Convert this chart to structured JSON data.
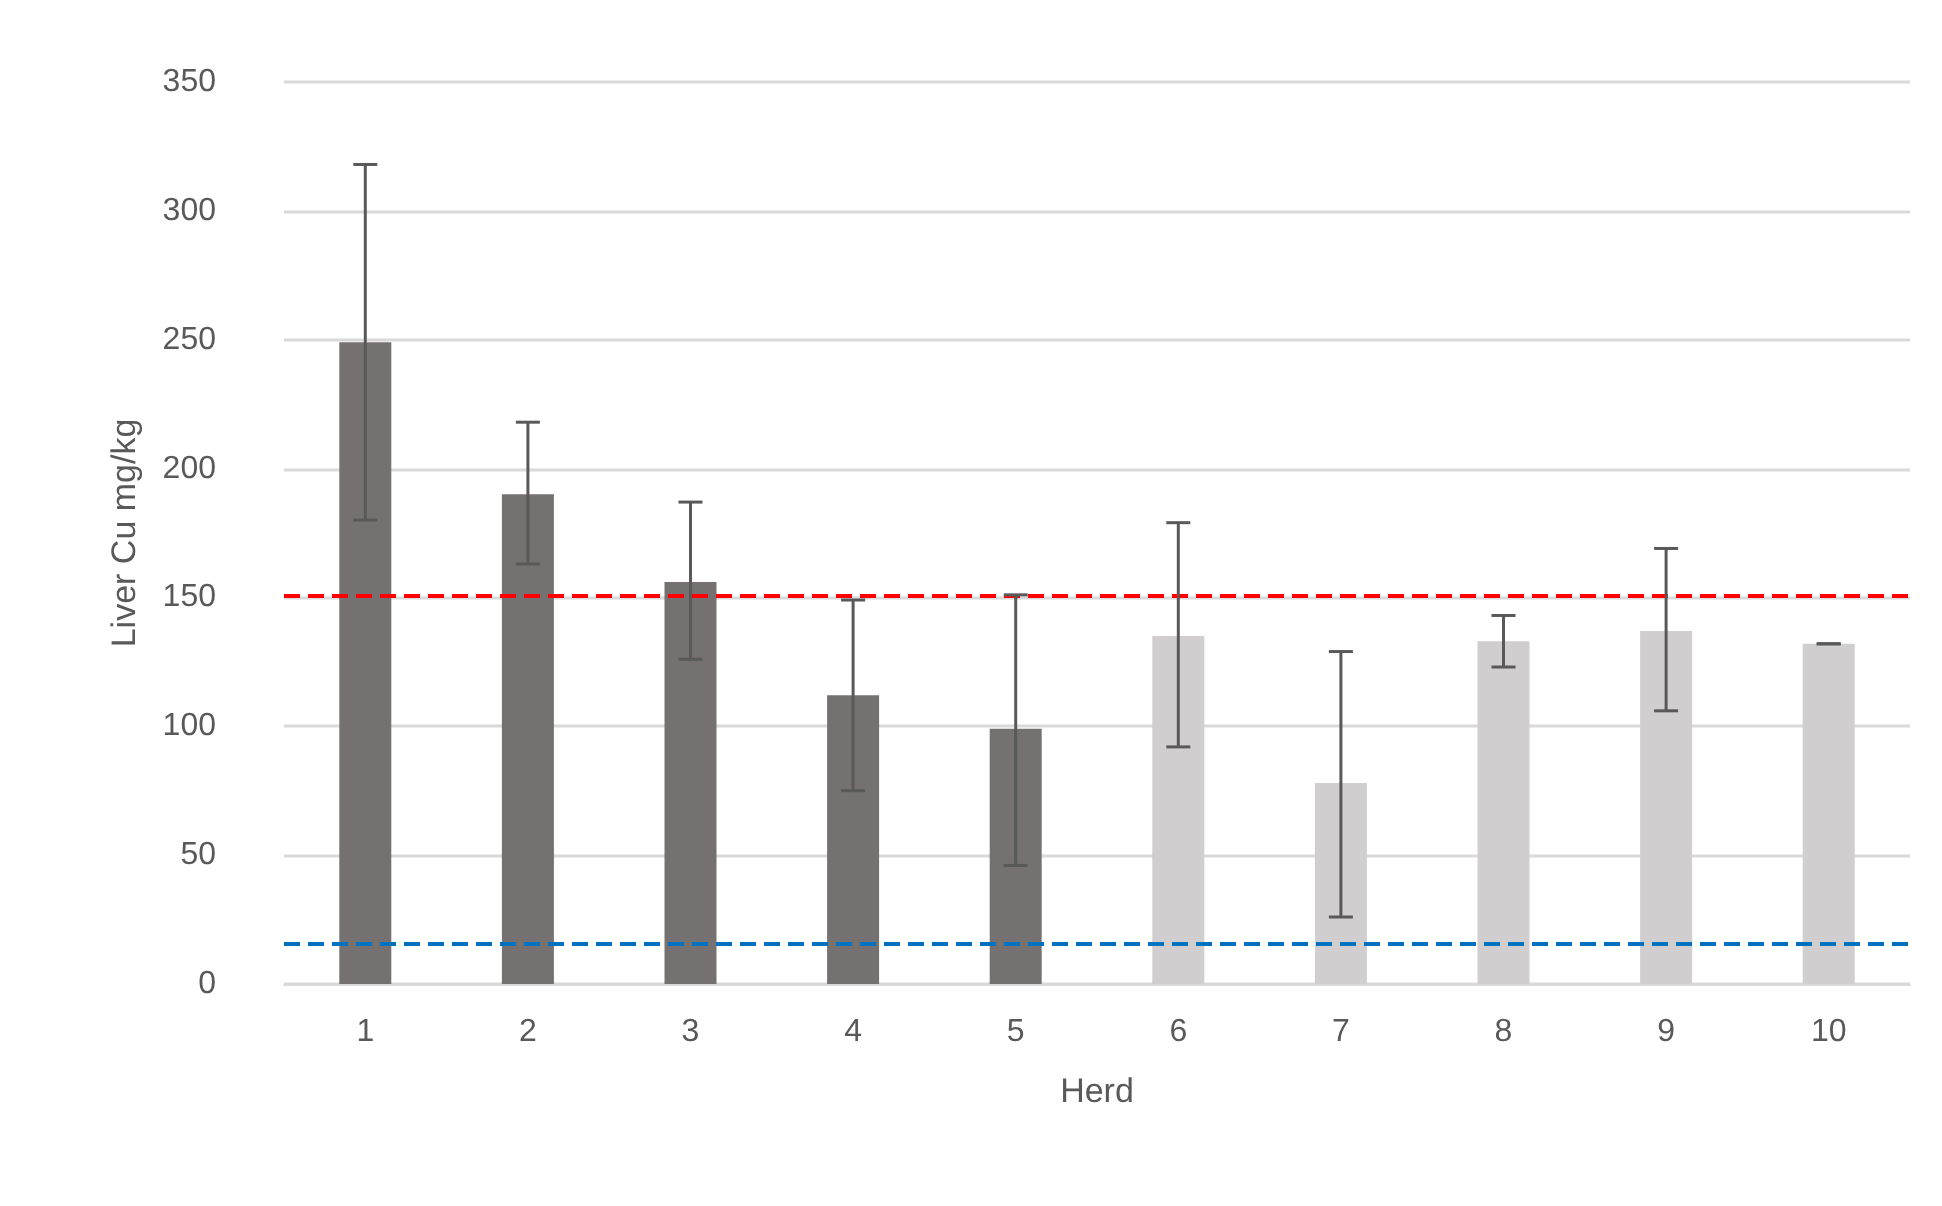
{
  "chart_data": {
    "type": "bar",
    "xlabel": "Herd",
    "ylabel": "Liver Cu mg/kg",
    "categories": [
      "1",
      "2",
      "3",
      "4",
      "5",
      "6",
      "7",
      "8",
      "9",
      "10"
    ],
    "values": [
      249,
      190,
      156,
      112,
      99,
      135,
      78,
      133,
      137,
      132
    ],
    "colors": [
      "#767171",
      "#767171",
      "#767171",
      "#767171",
      "#767171",
      "#d0cece",
      "#d0cece",
      "#d0cece",
      "#d0cece",
      "#d0cece"
    ],
    "errors": [
      [
        180,
        318
      ],
      [
        163,
        218
      ],
      [
        126,
        187
      ],
      [
        75,
        149
      ],
      [
        46,
        151
      ],
      [
        92,
        179
      ],
      [
        26,
        129
      ],
      [
        123,
        143
      ],
      [
        106,
        169
      ],
      [
        132,
        132
      ]
    ],
    "ylim": [
      0,
      350
    ],
    "yticks": [
      0,
      50,
      100,
      150,
      200,
      250,
      300,
      350
    ],
    "grid": "y",
    "ref_lines": [
      {
        "axis": "y",
        "value": 151,
        "color": "#ff0000",
        "line_style": "dashed"
      },
      {
        "axis": "y",
        "value": 16,
        "color": "#0070c0",
        "line_style": "dashed"
      }
    ]
  }
}
